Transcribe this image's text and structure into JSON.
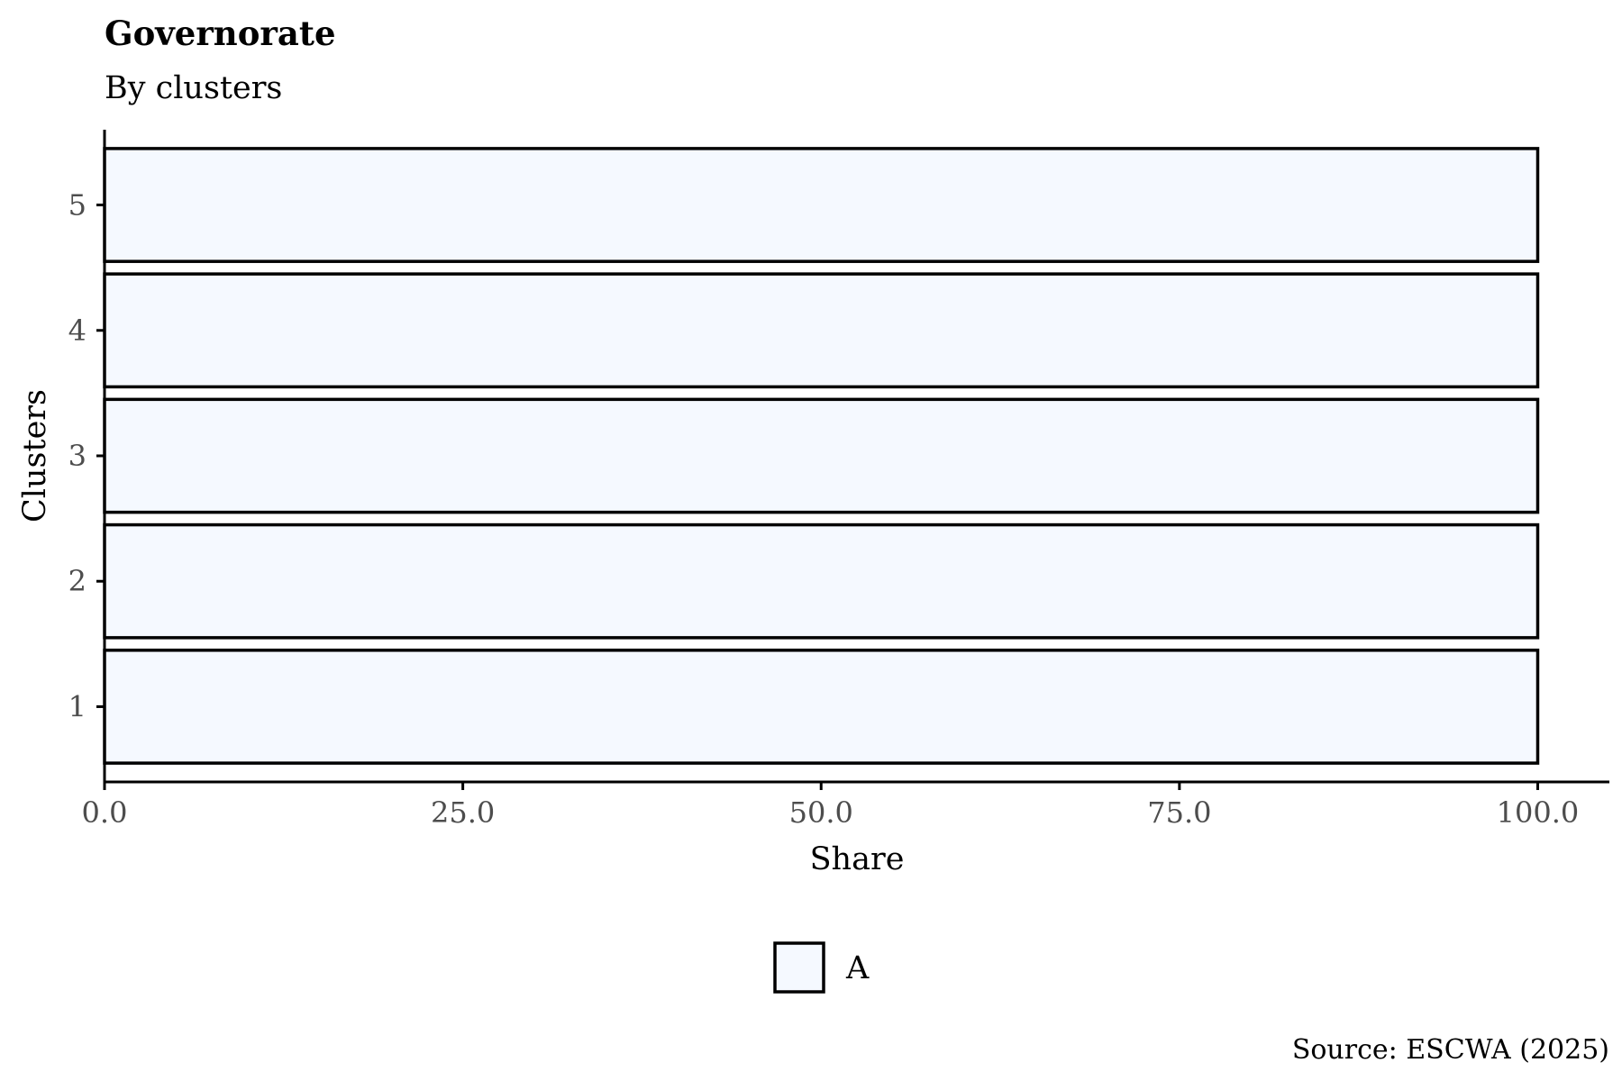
{
  "chart_data": {
    "type": "bar",
    "orientation": "horizontal",
    "stacked": true,
    "title": "Governorate",
    "subtitle": "By clusters",
    "xlabel": "Share",
    "ylabel": "Clusters",
    "categories": [
      "1",
      "2",
      "3",
      "4",
      "5"
    ],
    "series": [
      {
        "name": "A",
        "values": [
          100,
          100,
          100,
          100,
          100
        ],
        "color": "#f5f9ff"
      }
    ],
    "xlim": [
      0,
      105
    ],
    "xticks": [
      0,
      25,
      50,
      75,
      100
    ],
    "xtick_labels": [
      "0.0",
      "25.0",
      "50.0",
      "75.0",
      "100.0"
    ],
    "grid": false,
    "legend_position": "bottom",
    "caption": "Source: ESCWA (2025)",
    "bar_edge_color": "#000000"
  }
}
